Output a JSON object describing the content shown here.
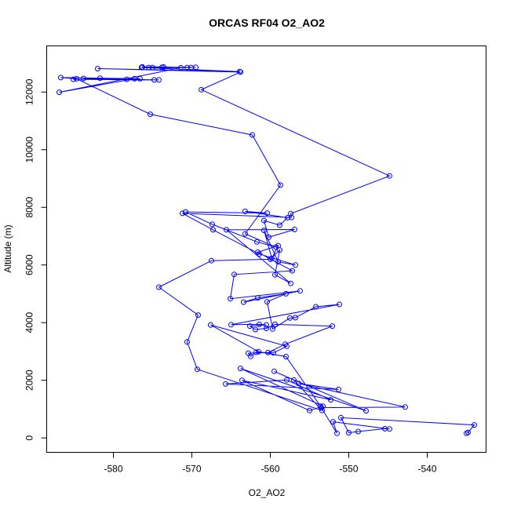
{
  "chart_data": {
    "type": "line",
    "title": "ORCAS RF04 O2_AO2",
    "xlabel": "O2_AO2",
    "ylabel": "Altitude (m)",
    "xlim": [
      -588.5,
      -532.5
    ],
    "ylim": [
      -500,
      13600
    ],
    "xticks": [
      -580,
      -570,
      -560,
      -550,
      -540
    ],
    "yticks": [
      0,
      2000,
      4000,
      6000,
      8000,
      10000,
      12000
    ],
    "xtick_labels": [
      "-580",
      "-570",
      "-560",
      "-550",
      "-540"
    ],
    "ytick_labels": [
      "0",
      "2000",
      "4000",
      "6000",
      "8000",
      "10000",
      "12000"
    ],
    "grid": false,
    "legend": "none",
    "color": "#0000ff",
    "marker": "open-circle",
    "points": [
      {
        "x": -535.0,
        "y": 160
      },
      {
        "x": -534.8,
        "y": 190
      },
      {
        "x": -534.0,
        "y": 450
      },
      {
        "x": -551.0,
        "y": 700
      },
      {
        "x": -550.0,
        "y": 180
      },
      {
        "x": -548.8,
        "y": 220
      },
      {
        "x": -545.4,
        "y": 320
      },
      {
        "x": -544.8,
        "y": 310
      },
      {
        "x": -552.0,
        "y": 560
      },
      {
        "x": -551.5,
        "y": 160
      },
      {
        "x": -553.5,
        "y": 1050
      },
      {
        "x": -542.8,
        "y": 1070
      },
      {
        "x": -556.4,
        "y": 1890
      },
      {
        "x": -551.3,
        "y": 1680
      },
      {
        "x": -565.7,
        "y": 1870
      },
      {
        "x": -557.9,
        "y": 2010
      },
      {
        "x": -552.3,
        "y": 1320
      },
      {
        "x": -563.6,
        "y": 2000
      },
      {
        "x": -555.0,
        "y": 950
      },
      {
        "x": -553.3,
        "y": 1100
      },
      {
        "x": -563.8,
        "y": 2410
      },
      {
        "x": -547.8,
        "y": 940
      },
      {
        "x": -559.5,
        "y": 2310
      },
      {
        "x": -557.0,
        "y": 2010
      },
      {
        "x": -553.4,
        "y": 950
      },
      {
        "x": -569.3,
        "y": 2380
      },
      {
        "x": -570.6,
        "y": 3330
      },
      {
        "x": -569.2,
        "y": 4260
      },
      {
        "x": -574.2,
        "y": 5230
      },
      {
        "x": -567.5,
        "y": 6150
      },
      {
        "x": -560.0,
        "y": 6200
      },
      {
        "x": -558.8,
        "y": 6520
      },
      {
        "x": -559.4,
        "y": 5660
      },
      {
        "x": -557.4,
        "y": 5360
      },
      {
        "x": -565.6,
        "y": 7220
      },
      {
        "x": -556.9,
        "y": 7230
      },
      {
        "x": -560.2,
        "y": 6960
      },
      {
        "x": -560.8,
        "y": 7540
      },
      {
        "x": -558.8,
        "y": 7380
      },
      {
        "x": -557.8,
        "y": 7640
      },
      {
        "x": -563.2,
        "y": 7860
      },
      {
        "x": -560.4,
        "y": 7800
      },
      {
        "x": -570.8,
        "y": 7840
      },
      {
        "x": -567.4,
        "y": 7410
      },
      {
        "x": -561.7,
        "y": 6800
      },
      {
        "x": -559.3,
        "y": 6620
      },
      {
        "x": -563.2,
        "y": 7080
      },
      {
        "x": -558.7,
        "y": 8770
      },
      {
        "x": -562.3,
        "y": 10510
      },
      {
        "x": -575.3,
        "y": 11230
      },
      {
        "x": -584.7,
        "y": 12460
      },
      {
        "x": -586.7,
        "y": 12500
      },
      {
        "x": -576.6,
        "y": 12460
      },
      {
        "x": -583.8,
        "y": 12470
      },
      {
        "x": -574.2,
        "y": 12420
      },
      {
        "x": -574.8,
        "y": 12420
      },
      {
        "x": -585.1,
        "y": 12440
      },
      {
        "x": -578.3,
        "y": 12440
      },
      {
        "x": -581.7,
        "y": 12480
      },
      {
        "x": -577.3,
        "y": 12460
      },
      {
        "x": -586.9,
        "y": 11990
      },
      {
        "x": -571.4,
        "y": 12840
      },
      {
        "x": -575.5,
        "y": 12850
      },
      {
        "x": -573.8,
        "y": 12860
      },
      {
        "x": -569.5,
        "y": 12860
      },
      {
        "x": -576.3,
        "y": 12870
      },
      {
        "x": -573.6,
        "y": 12870
      },
      {
        "x": -570.6,
        "y": 12850
      },
      {
        "x": -575.0,
        "y": 12850
      },
      {
        "x": -576.4,
        "y": 12860
      },
      {
        "x": -570.1,
        "y": 12850
      },
      {
        "x": -576.4,
        "y": 12850
      },
      {
        "x": -563.9,
        "y": 12710
      },
      {
        "x": -582.0,
        "y": 12810
      },
      {
        "x": -563.8,
        "y": 12690
      },
      {
        "x": -568.8,
        "y": 12080
      },
      {
        "x": -544.8,
        "y": 9090
      },
      {
        "x": -557.4,
        "y": 7780
      },
      {
        "x": -557.3,
        "y": 7650
      },
      {
        "x": -571.2,
        "y": 7790
      },
      {
        "x": -567.3,
        "y": 7220
      },
      {
        "x": -561.4,
        "y": 6380
      },
      {
        "x": -556.8,
        "y": 6000
      },
      {
        "x": -559.0,
        "y": 6110
      },
      {
        "x": -560.8,
        "y": 7200
      },
      {
        "x": -559.8,
        "y": 6230
      },
      {
        "x": -559.0,
        "y": 6670
      },
      {
        "x": -561.6,
        "y": 6440
      },
      {
        "x": -557.2,
        "y": 5800
      },
      {
        "x": -564.6,
        "y": 5670
      },
      {
        "x": -565.1,
        "y": 4830
      },
      {
        "x": -556.2,
        "y": 5100
      },
      {
        "x": -563.4,
        "y": 4710
      },
      {
        "x": -561.6,
        "y": 4860
      },
      {
        "x": -558.0,
        "y": 5000
      },
      {
        "x": -560.4,
        "y": 4720
      },
      {
        "x": -559.7,
        "y": 3780
      },
      {
        "x": -557.5,
        "y": 4160
      },
      {
        "x": -556.8,
        "y": 4170
      },
      {
        "x": -554.2,
        "y": 4550
      },
      {
        "x": -551.2,
        "y": 4630
      },
      {
        "x": -565.0,
        "y": 3930
      },
      {
        "x": -561.4,
        "y": 3940
      },
      {
        "x": -560.5,
        "y": 3920
      },
      {
        "x": -562.6,
        "y": 3880
      },
      {
        "x": -561.9,
        "y": 3760
      },
      {
        "x": -560.5,
        "y": 3800
      },
      {
        "x": -559.4,
        "y": 3940
      },
      {
        "x": -552.1,
        "y": 3880
      },
      {
        "x": -558.1,
        "y": 3250
      },
      {
        "x": -560.3,
        "y": 2960
      },
      {
        "x": -562.8,
        "y": 2940
      },
      {
        "x": -562.5,
        "y": 2830
      },
      {
        "x": -561.8,
        "y": 2970
      },
      {
        "x": -559.6,
        "y": 2950
      },
      {
        "x": -557.9,
        "y": 3180
      },
      {
        "x": -567.6,
        "y": 3920
      },
      {
        "x": -561.5,
        "y": 2990
      },
      {
        "x": -558.0,
        "y": 2820
      },
      {
        "x": -553.6,
        "y": 1100
      }
    ]
  }
}
